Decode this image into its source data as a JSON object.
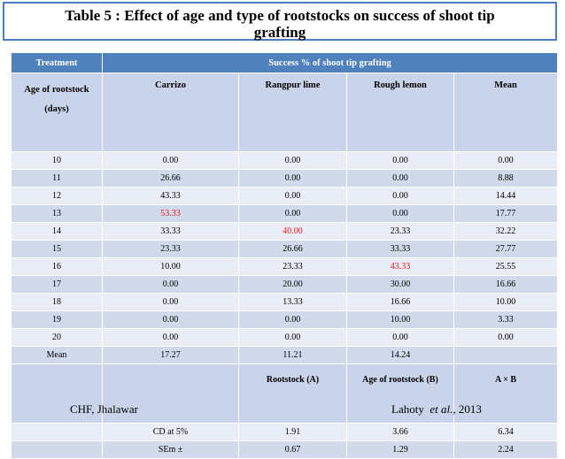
{
  "title": "Table 5 : Effect of age and type of rootstocks on success of shoot tip grafting",
  "table": {
    "head_treatment": "Treatment",
    "head_success": "Success % of shoot tip grafting",
    "sub_age": "Age of rootstock",
    "sub_days": "(days)",
    "columns": [
      "Carrizo",
      "Rangpur lime",
      "Rough lemon",
      "Mean"
    ],
    "rows": [
      [
        "10",
        "0.00",
        "0.00",
        "0.00",
        "0.00"
      ],
      [
        "11",
        "26.66",
        "0.00",
        "0.00",
        "8.88"
      ],
      [
        "12",
        "43.33",
        "0.00",
        "0.00",
        "14.44"
      ],
      [
        "13",
        "53.33",
        "0.00",
        "0.00",
        "17.77"
      ],
      [
        "14",
        "33.33",
        "40.00",
        "23.33",
        "32.22"
      ],
      [
        "15",
        "23.33",
        "26.66",
        "33.33",
        "27.77"
      ],
      [
        "16",
        "10.00",
        "23.33",
        "43.33",
        "25.55"
      ],
      [
        "17",
        "0.00",
        "20.00",
        "30.00",
        "16.66"
      ],
      [
        "18",
        "0.00",
        "13.33",
        "16.66",
        "10.00"
      ],
      [
        "19",
        "0.00",
        "0.00",
        "10.00",
        "3.33"
      ],
      [
        "20",
        "0.00",
        "0.00",
        "0.00",
        "0.00"
      ],
      [
        "Mean",
        "17.27",
        "11.21",
        "14.24",
        ""
      ]
    ],
    "stat_headers": [
      "Rootstock (A)",
      "Age of rootstock (B)",
      "A × B"
    ],
    "stat_rows": [
      [
        "CD at 5%",
        "1.91",
        "3.66",
        "6.34"
      ],
      [
        "SEm ±",
        "0.67",
        "1.29",
        "2.24"
      ]
    ],
    "highlight_color": "#e01b1b"
  },
  "footer": {
    "left": "CHF, Jhalawar",
    "right_author": "Lahoty",
    "right_etal": "et al.,",
    "right_year": "2013"
  }
}
